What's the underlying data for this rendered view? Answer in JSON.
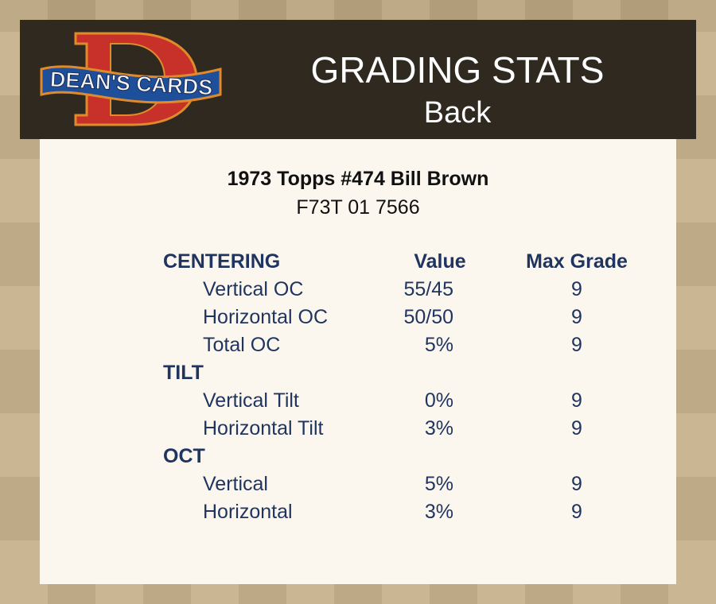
{
  "header": {
    "logo_text": "DEAN'S CARDS",
    "title": "GRADING STATS",
    "subtitle": "Back"
  },
  "card": {
    "title": "1973 Topps #474 Bill Brown",
    "id": "F73T 01 7566"
  },
  "columns": {
    "value": "Value",
    "max": "Max Grade"
  },
  "sections": [
    {
      "name": "CENTERING",
      "rows": [
        {
          "label": "Vertical OC",
          "value": "55/45",
          "max": "9"
        },
        {
          "label": "Horizontal OC",
          "value": "50/50",
          "max": "9"
        },
        {
          "label": "Total OC",
          "value": "5%",
          "max": "9"
        }
      ]
    },
    {
      "name": "TILT",
      "rows": [
        {
          "label": "Vertical Tilt",
          "value": "0%",
          "max": "9"
        },
        {
          "label": "Horizontal Tilt",
          "value": "3%",
          "max": "9"
        }
      ]
    },
    {
      "name": "OCT",
      "rows": [
        {
          "label": "Vertical",
          "value": "5%",
          "max": "9"
        },
        {
          "label": "Horizontal",
          "value": "3%",
          "max": "9"
        }
      ]
    }
  ]
}
